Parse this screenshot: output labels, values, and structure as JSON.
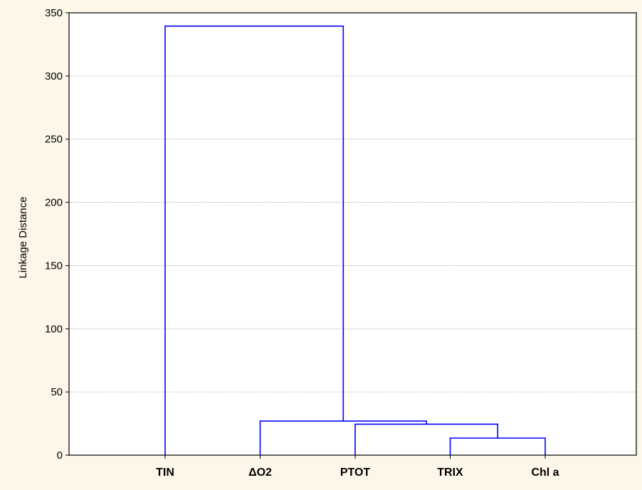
{
  "chart_data": {
    "type": "dendrogram",
    "title": "",
    "xlabel": "",
    "ylabel": "Linkage Distance",
    "ylim": [
      0,
      350
    ],
    "yticks": [
      0,
      50,
      100,
      150,
      200,
      250,
      300,
      350
    ],
    "grid": "horizontal dotted",
    "leaves": [
      "TIN",
      "ΔO2",
      "PTOT",
      "TRIX",
      "Chl a"
    ],
    "merges": [
      {
        "left": "TRIX",
        "right": "Chl a",
        "height": 13.5
      },
      {
        "left": "PTOT",
        "right": "TRIX+Chl a",
        "height": 24.5
      },
      {
        "left": "ΔO2",
        "right": "PTOT+TRIX+Chl a",
        "height": 27
      },
      {
        "left": "TIN",
        "right": "ΔO2+PTOT+TRIX+Chl a",
        "height": 339.5
      }
    ]
  },
  "colors": {
    "background": "#fdf7ea",
    "plot_background": "#ffffff",
    "link": "#0000ff",
    "grid": "#a0a0a0",
    "axis": "#000000"
  }
}
